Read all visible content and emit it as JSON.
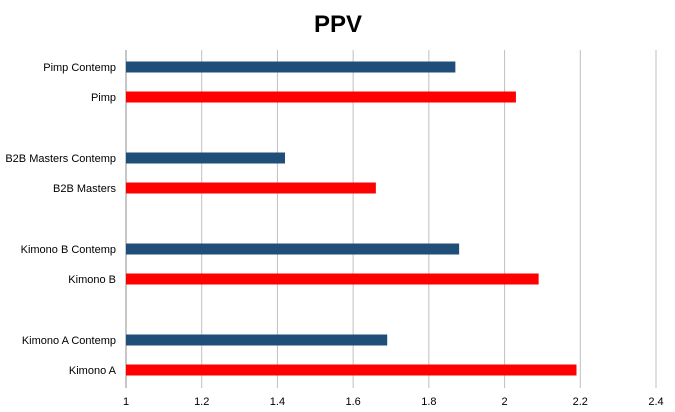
{
  "chart_data": {
    "type": "bar",
    "orientation": "horizontal",
    "title": "PPV",
    "xlabel": "",
    "ylabel": "",
    "xlim": [
      1,
      2.4
    ],
    "x_ticks": [
      "1",
      "1.2",
      "1.4",
      "1.6",
      "1.8",
      "2",
      "2.2",
      "2.4"
    ],
    "grid": true,
    "legend": "none",
    "groups": [
      {
        "bars": [
          {
            "label": "Pimp Contemp",
            "value": 1.87,
            "color": "#1f4e79"
          },
          {
            "label": "Pimp",
            "value": 2.03,
            "color": "#ff0000"
          }
        ]
      },
      {
        "bars": [
          {
            "label": "B2B Masters Contemp",
            "value": 1.42,
            "color": "#1f4e79"
          },
          {
            "label": "B2B Masters",
            "value": 1.66,
            "color": "#ff0000"
          }
        ]
      },
      {
        "bars": [
          {
            "label": "Kimono B Contemp",
            "value": 1.88,
            "color": "#1f4e79"
          },
          {
            "label": "Kimono B",
            "value": 2.09,
            "color": "#ff0000"
          }
        ]
      },
      {
        "bars": [
          {
            "label": "Kimono A Contemp",
            "value": 1.69,
            "color": "#1f4e79"
          },
          {
            "label": "Kimono A",
            "value": 2.19,
            "color": "#ff0000"
          }
        ]
      }
    ]
  }
}
